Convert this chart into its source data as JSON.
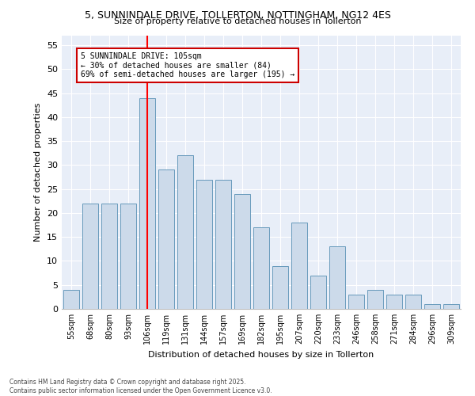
{
  "title1": "5, SUNNINDALE DRIVE, TOLLERTON, NOTTINGHAM, NG12 4ES",
  "title2": "Size of property relative to detached houses in Tollerton",
  "xlabel": "Distribution of detached houses by size in Tollerton",
  "ylabel": "Number of detached properties",
  "categories": [
    "55sqm",
    "68sqm",
    "80sqm",
    "93sqm",
    "106sqm",
    "119sqm",
    "131sqm",
    "144sqm",
    "157sqm",
    "169sqm",
    "182sqm",
    "195sqm",
    "207sqm",
    "220sqm",
    "233sqm",
    "246sqm",
    "258sqm",
    "271sqm",
    "284sqm",
    "296sqm",
    "309sqm"
  ],
  "values": [
    4,
    22,
    22,
    22,
    44,
    29,
    32,
    27,
    27,
    24,
    17,
    9,
    18,
    7,
    13,
    3,
    4,
    3,
    3,
    1,
    1
  ],
  "bar_color": "#ccdaea",
  "bar_edge_color": "#6699bb",
  "red_line_index": 4,
  "annotation_line1": "5 SUNNINDALE DRIVE: 105sqm",
  "annotation_line2": "← 30% of detached houses are smaller (84)",
  "annotation_line3": "69% of semi-detached houses are larger (195) →",
  "annotation_box_color": "#ffffff",
  "annotation_box_edge": "#cc0000",
  "background_color": "#e8eef8",
  "footnote": "Contains HM Land Registry data © Crown copyright and database right 2025.\nContains public sector information licensed under the Open Government Licence v3.0.",
  "ylim": [
    0,
    57
  ],
  "yticks": [
    0,
    5,
    10,
    15,
    20,
    25,
    30,
    35,
    40,
    45,
    50,
    55
  ],
  "figwidth": 6.0,
  "figheight": 5.0,
  "dpi": 100
}
